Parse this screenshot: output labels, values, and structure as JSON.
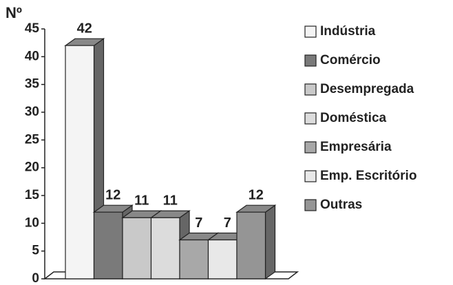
{
  "chart_data": {
    "type": "bar3d",
    "y_label": "Nº",
    "categories": [
      "Indústria",
      "Comércio",
      "Desempregada",
      "Doméstica",
      "Empresária",
      "Emp. Escritório",
      "Outras"
    ],
    "values": [
      42,
      12,
      11,
      11,
      7,
      7,
      12
    ],
    "colors": [
      "#f4f4f4",
      "#7a7a7a",
      "#c9c9c9",
      "#dcdcdc",
      "#a8a8a8",
      "#e8e8e8",
      "#959595"
    ],
    "ylim": [
      0,
      45
    ],
    "yticks": [
      0,
      5,
      10,
      15,
      20,
      25,
      30,
      35,
      40,
      45
    ],
    "legend": "right"
  }
}
